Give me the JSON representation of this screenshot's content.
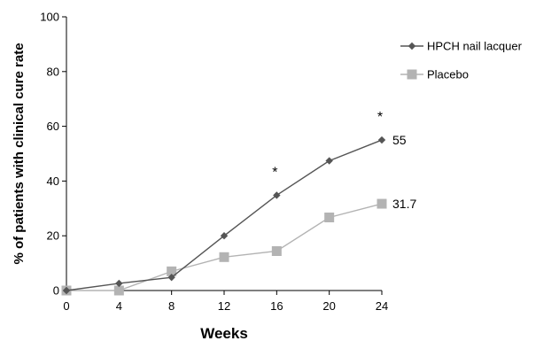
{
  "chart_data": {
    "type": "line",
    "xlabel": "Weeks",
    "ylabel": "% of patients with clinical cure rate",
    "x": [
      0,
      4,
      8,
      12,
      16,
      20,
      24
    ],
    "xlim": [
      0,
      24
    ],
    "ylim": [
      0,
      100
    ],
    "x_ticks": [
      0,
      4,
      8,
      12,
      16,
      20,
      24
    ],
    "y_ticks": [
      0,
      20,
      40,
      60,
      80,
      100
    ],
    "grid": false,
    "legend_position": "top-right",
    "series": [
      {
        "name": "HPCH nail lacquer",
        "values": [
          0,
          2.6,
          4.8,
          20,
          34.8,
          47.4,
          55
        ],
        "color": "#555555",
        "marker": "diamond"
      },
      {
        "name": "Placebo",
        "values": [
          0,
          0,
          7,
          12.2,
          14.4,
          26.7,
          31.7
        ],
        "color": "#b3b3b3",
        "marker": "square"
      }
    ],
    "data_labels": [
      {
        "series": 0,
        "x": 24,
        "text": "55"
      },
      {
        "series": 1,
        "x": 24,
        "text": "31.7"
      }
    ],
    "significance_marks": [
      {
        "x": 16,
        "text": "*"
      },
      {
        "x": 24,
        "text": "*"
      }
    ]
  }
}
